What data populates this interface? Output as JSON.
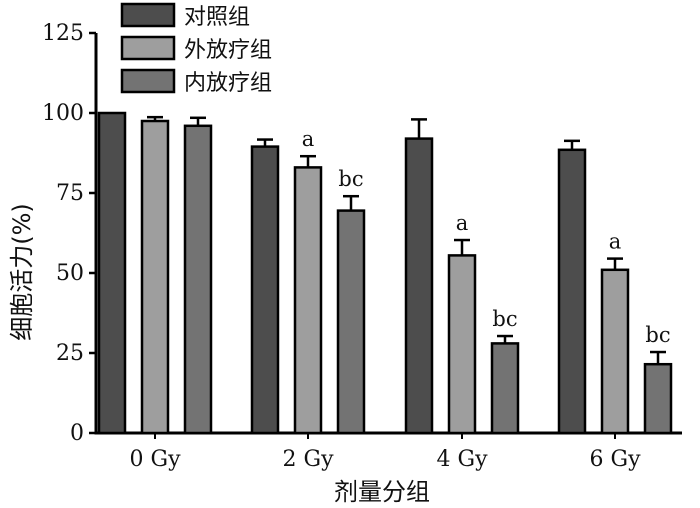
{
  "chart_data": {
    "type": "bar",
    "categories": [
      "0 Gy",
      "2 Gy",
      "4 Gy",
      "6 Gy"
    ],
    "xlabel": "剂量分组",
    "ylabel": "细胞活力(%)",
    "ylim": [
      0,
      125
    ],
    "yticks": [
      0,
      25,
      50,
      75,
      100,
      125
    ],
    "grid": false,
    "legend_position": "top-left",
    "series": [
      {
        "name": "对照组",
        "color": "#4d4d4d",
        "values": [
          100,
          89.5,
          92,
          88.5
        ],
        "errors": [
          0,
          2.2,
          6,
          2.8
        ],
        "annotations": [
          "",
          "",
          "",
          ""
        ]
      },
      {
        "name": "外放疗组",
        "color": "#9e9e9e",
        "values": [
          97.5,
          83,
          55.5,
          51
        ],
        "errors": [
          1.2,
          3.5,
          4.8,
          3.5
        ],
        "annotations": [
          "",
          "a",
          "a",
          "a"
        ]
      },
      {
        "name": "内放疗组",
        "color": "#737373",
        "values": [
          96,
          69.5,
          28,
          21.5
        ],
        "errors": [
          2.5,
          4.5,
          2.3,
          3.8
        ],
        "annotations": [
          "",
          "bc",
          "bc",
          "bc"
        ]
      }
    ]
  }
}
